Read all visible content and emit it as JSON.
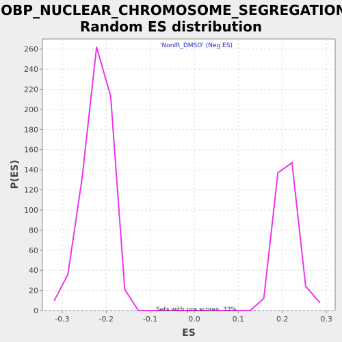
{
  "chart_data": {
    "type": "line",
    "title_line1": "GOBP_NUCLEAR_CHROMOSOME_SEGREGATION:",
    "title_line2": "Random ES distribution",
    "xlabel": "ES",
    "ylabel": "P(ES)",
    "xlim": [
      -0.345,
      0.32
    ],
    "ylim": [
      0,
      270
    ],
    "xticks": [
      -0.3,
      -0.2,
      -0.1,
      0.0,
      0.1,
      0.2,
      0.3
    ],
    "xtick_labels": [
      "-0.3",
      "-0.2",
      "-0.1",
      "0.0",
      "0.1",
      "0.2",
      "0.3"
    ],
    "yticks": [
      0,
      20,
      40,
      60,
      80,
      100,
      120,
      140,
      160,
      180,
      200,
      220,
      240,
      260
    ],
    "ytick_labels": [
      "0",
      "20",
      "40",
      "60",
      "80",
      "100",
      "120",
      "140",
      "160",
      "180",
      "200",
      "220",
      "240",
      "260"
    ],
    "grid": true,
    "legend": {
      "placement": "top-center",
      "prefix": "'",
      "name": "NonIR_DMSO",
      "suffix": "' (Neg ES)",
      "prefix_color": "#cc0000",
      "name_color": "#2222cc"
    },
    "annotation": "Sets with pos scores: 33%",
    "series": [
      {
        "color": "#ee33ee",
        "x": [
          -0.318,
          -0.287,
          -0.255,
          -0.222,
          -0.19,
          -0.158,
          -0.127,
          -0.095,
          -0.063,
          -0.032,
          0.0,
          0.032,
          0.063,
          0.095,
          0.127,
          0.158,
          0.19,
          0.222,
          0.253,
          0.285
        ],
        "y": [
          10,
          36,
          131,
          262,
          213,
          21,
          0,
          0,
          0,
          0,
          0,
          0,
          0,
          0,
          0,
          12,
          137,
          147,
          24,
          8
        ]
      }
    ]
  }
}
